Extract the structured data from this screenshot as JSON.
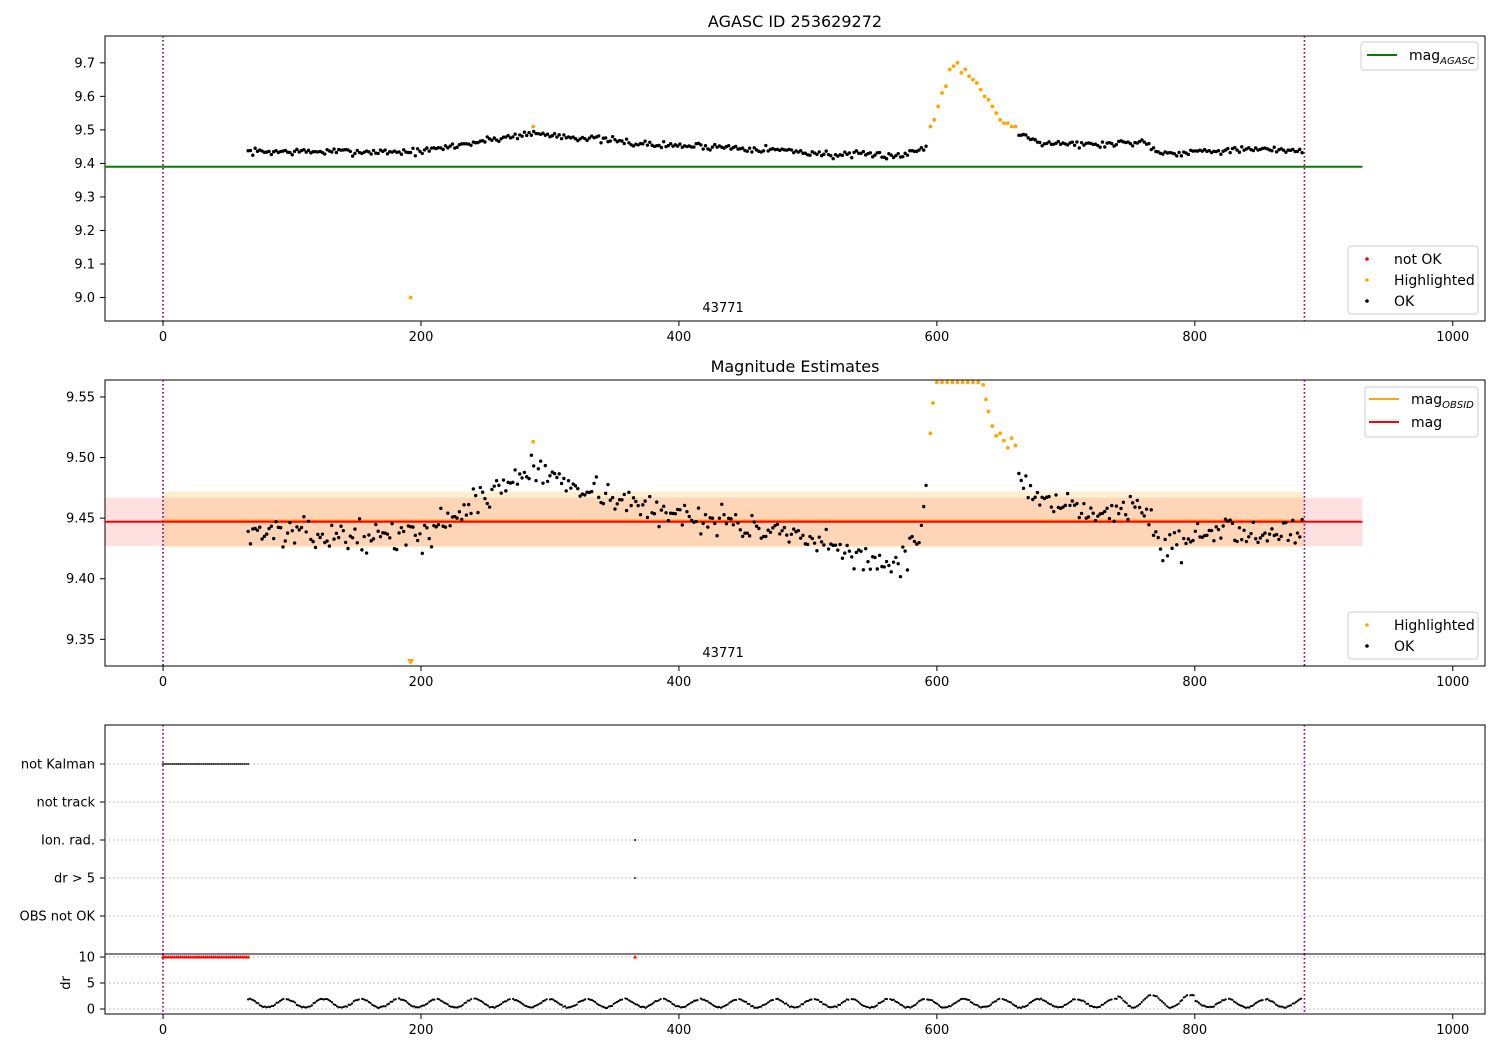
{
  "chart_data": [
    {
      "type": "scatter",
      "title": "AGASC ID 253629272",
      "xlim": [
        -45,
        1025
      ],
      "ylim": [
        8.93,
        9.78
      ],
      "xticks": [
        0,
        200,
        400,
        600,
        800,
        1000
      ],
      "yticks": [
        9.0,
        9.1,
        9.2,
        9.3,
        9.4,
        9.5,
        9.6,
        9.7
      ],
      "ytick_decimals": 1,
      "obsid_boundaries": [
        0,
        885
      ],
      "obsid_label": {
        "text": "43771",
        "x": 442
      },
      "reference_lines": [
        {
          "name": "mag_AGASC",
          "label_main": "mag",
          "label_sub": "AGASC",
          "value": 9.39,
          "x_range": [
            -45,
            930
          ],
          "color": "#008000"
        }
      ],
      "series": [
        {
          "name": "not OK",
          "color": "#ff0000",
          "points": []
        },
        {
          "name": "Highlighted",
          "color": "#ffa500",
          "points": [
            [
              192,
              9.0
            ],
            [
              287,
              9.51
            ],
            [
              595,
              9.51
            ],
            [
              598,
              9.53
            ],
            [
              601,
              9.57
            ],
            [
              604,
              9.61
            ],
            [
              607,
              9.63
            ],
            [
              610,
              9.68
            ],
            [
              613,
              9.69
            ],
            [
              616,
              9.7
            ],
            [
              619,
              9.67
            ],
            [
              622,
              9.68
            ],
            [
              625,
              9.66
            ],
            [
              628,
              9.65
            ],
            [
              631,
              9.64
            ],
            [
              634,
              9.62
            ],
            [
              637,
              9.6
            ],
            [
              640,
              9.59
            ],
            [
              643,
              9.57
            ],
            [
              646,
              9.55
            ],
            [
              649,
              9.53
            ],
            [
              652,
              9.52
            ],
            [
              655,
              9.52
            ],
            [
              658,
              9.51
            ],
            [
              661,
              9.51
            ]
          ]
        },
        {
          "name": "OK",
          "color": "#000000",
          "generator": {
            "x_range": [
              66,
              884
            ],
            "step": 1.8,
            "skip": [
              [
                593,
                663
              ]
            ],
            "noise": 0.009,
            "knots": [
              [
                66,
                9.435
              ],
              [
                130,
                9.435
              ],
              [
                200,
                9.435
              ],
              [
                245,
                9.465
              ],
              [
                285,
                9.49
              ],
              [
                330,
                9.475
              ],
              [
                380,
                9.455
              ],
              [
                430,
                9.45
              ],
              [
                480,
                9.44
              ],
              [
                520,
                9.425
              ],
              [
                575,
                9.425
              ],
              [
                592,
                9.45
              ],
              [
                663,
                9.49
              ],
              [
                680,
                9.465
              ],
              [
                720,
                9.455
              ],
              [
                760,
                9.465
              ],
              [
                775,
                9.43
              ],
              [
                820,
                9.44
              ],
              [
                884,
                9.44
              ]
            ]
          }
        }
      ],
      "legend": [
        {
          "label": "mag_AGASC",
          "position": "top-right"
        },
        {
          "labels": [
            "not OK",
            "Highlighted",
            "OK"
          ],
          "position": "lower-right"
        }
      ]
    },
    {
      "type": "scatter",
      "title": "Magnitude Estimates",
      "xlim": [
        -45,
        1025
      ],
      "ylim": [
        9.328,
        9.564
      ],
      "xticks": [
        0,
        200,
        400,
        600,
        800,
        1000
      ],
      "yticks": [
        9.35,
        9.4,
        9.45,
        9.5,
        9.55
      ],
      "ytick_decimals": 2,
      "obsid_boundaries": [
        0,
        885
      ],
      "obsid_label": {
        "text": "43771",
        "x": 442
      },
      "bands": [
        {
          "name": "mag band",
          "y_range": [
            9.427,
            9.467
          ],
          "x_range": [
            -45,
            930
          ],
          "color": "#ff0000",
          "opacity": 0.12
        },
        {
          "name": "mag_OBSID band",
          "y_range": [
            9.426,
            9.472
          ],
          "x_range": [
            0,
            885
          ],
          "color": "#ffa500",
          "opacity": 0.18
        }
      ],
      "reference_lines": [
        {
          "name": "mag_OBSID",
          "label_main": "mag",
          "label_sub": "OBSID",
          "value": 9.448,
          "x_range": [
            0,
            885
          ],
          "color": "#ffa500"
        },
        {
          "name": "mag",
          "label_main": "mag",
          "label_sub": "",
          "value": 9.447,
          "x_range": [
            -45,
            930
          ],
          "color": "#ff0000"
        }
      ],
      "series": [
        {
          "name": "Highlighted",
          "color": "#ffa500",
          "points": [
            [
              287,
              9.513
            ],
            [
              595,
              9.52
            ],
            [
              597,
              9.545
            ],
            [
              600,
              9.562
            ],
            [
              604,
              9.562
            ],
            [
              608,
              9.562
            ],
            [
              612,
              9.562
            ],
            [
              616,
              9.562
            ],
            [
              620,
              9.562
            ],
            [
              624,
              9.562
            ],
            [
              628,
              9.562
            ],
            [
              632,
              9.562
            ],
            [
              636,
              9.56
            ],
            [
              638,
              9.548
            ],
            [
              640,
              9.538
            ],
            [
              643,
              9.526
            ],
            [
              646,
              9.518
            ],
            [
              649,
              9.52
            ],
            [
              652,
              9.514
            ],
            [
              655,
              9.508
            ],
            [
              658,
              9.516
            ],
            [
              661,
              9.51
            ]
          ]
        },
        {
          "name": "OK",
          "color": "#000000",
          "generator": {
            "x_range": [
              66,
              884
            ],
            "step": 1.8,
            "skip": [
              [
                593,
                663
              ]
            ],
            "noise": 0.01,
            "knots": [
              [
                66,
                9.44
              ],
              [
                130,
                9.435
              ],
              [
                200,
                9.435
              ],
              [
                245,
                9.465
              ],
              [
                285,
                9.49
              ],
              [
                330,
                9.475
              ],
              [
                380,
                9.455
              ],
              [
                430,
                9.45
              ],
              [
                480,
                9.435
              ],
              [
                520,
                9.425
              ],
              [
                570,
                9.41
              ],
              [
                585,
                9.43
              ],
              [
                592,
                9.47
              ],
              [
                663,
                9.49
              ],
              [
                680,
                9.46
              ],
              [
                720,
                9.455
              ],
              [
                760,
                9.46
              ],
              [
                775,
                9.425
              ],
              [
                820,
                9.44
              ],
              [
                884,
                9.44
              ]
            ]
          }
        }
      ],
      "offscale_markers": [
        {
          "x": 192,
          "color": "#ffa500"
        }
      ],
      "legend": [
        {
          "labels": [
            "mag_OBSID",
            "mag"
          ],
          "position": "top-right"
        },
        {
          "labels": [
            "Highlighted",
            "OK"
          ],
          "position": "lower-right"
        }
      ]
    },
    {
      "type": "scatter",
      "title": "",
      "xlim": [
        -45,
        1025
      ],
      "xticks": [
        0,
        200,
        400,
        600,
        800,
        1000
      ],
      "obsid_boundaries": [
        0,
        885
      ],
      "flag_rows": [
        "not Kalman",
        "not track",
        "Ion. rad.",
        "dr > 5",
        "OBS not OK"
      ],
      "flag_points": {
        "not Kalman": {
          "x_range": [
            0,
            66
          ]
        },
        "Ion. rad.": {
          "x": [
            366
          ]
        },
        "dr > 5": {
          "x": [
            366
          ]
        }
      },
      "dr_panel": {
        "ylabel": "dr",
        "ylim": [
          -0.5,
          10.5
        ],
        "yticks": [
          0,
          5,
          10
        ],
        "clipped": {
          "x_range": [
            0,
            66
          ],
          "value": 10,
          "extra_x": [
            366
          ],
          "color": "#ff0000"
        },
        "series": {
          "x_range": [
            66,
            884
          ],
          "color": "#000000",
          "segments": 28,
          "min": 0.3,
          "max": 2.1,
          "late_max": 3.0
        }
      }
    }
  ]
}
